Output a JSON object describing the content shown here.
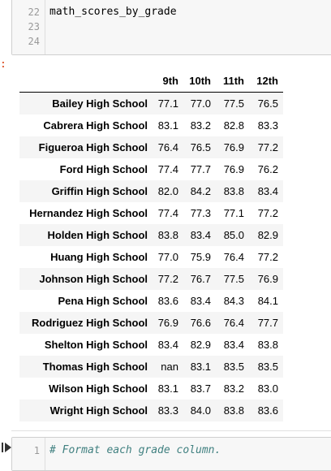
{
  "top_cell": {
    "lines": [
      {
        "number": "22",
        "code": "math_scores_by_grade"
      },
      {
        "number": "23",
        "code": ""
      },
      {
        "number": "24",
        "code": ""
      }
    ],
    "output_prompt": ":"
  },
  "table": {
    "columns": [
      "9th",
      "10th",
      "11th",
      "12th"
    ],
    "rows": [
      {
        "school": "Bailey High School",
        "values": [
          "77.1",
          "77.0",
          "77.5",
          "76.5"
        ]
      },
      {
        "school": "Cabrera High School",
        "values": [
          "83.1",
          "83.2",
          "82.8",
          "83.3"
        ]
      },
      {
        "school": "Figueroa High School",
        "values": [
          "76.4",
          "76.5",
          "76.9",
          "77.2"
        ]
      },
      {
        "school": "Ford High School",
        "values": [
          "77.4",
          "77.7",
          "76.9",
          "76.2"
        ]
      },
      {
        "school": "Griffin High School",
        "values": [
          "82.0",
          "84.2",
          "83.8",
          "83.4"
        ]
      },
      {
        "school": "Hernandez High School",
        "values": [
          "77.4",
          "77.3",
          "77.1",
          "77.2"
        ]
      },
      {
        "school": "Holden High School",
        "values": [
          "83.8",
          "83.4",
          "85.0",
          "82.9"
        ]
      },
      {
        "school": "Huang High School",
        "values": [
          "77.0",
          "75.9",
          "76.4",
          "77.2"
        ]
      },
      {
        "school": "Johnson High School",
        "values": [
          "77.2",
          "76.7",
          "77.5",
          "76.9"
        ]
      },
      {
        "school": "Pena High School",
        "values": [
          "83.6",
          "83.4",
          "84.3",
          "84.1"
        ]
      },
      {
        "school": "Rodriguez High School",
        "values": [
          "76.9",
          "76.6",
          "76.4",
          "77.7"
        ]
      },
      {
        "school": "Shelton High School",
        "values": [
          "83.4",
          "82.9",
          "83.4",
          "83.8"
        ]
      },
      {
        "school": "Thomas High School",
        "values": [
          "nan",
          "83.1",
          "83.5",
          "83.5"
        ]
      },
      {
        "school": "Wilson High School",
        "values": [
          "83.1",
          "83.7",
          "83.2",
          "83.0"
        ]
      },
      {
        "school": "Wright High School",
        "values": [
          "83.3",
          "84.0",
          "83.8",
          "83.6"
        ]
      }
    ]
  },
  "bottom_cell": {
    "line_number": "1",
    "code": "# Format each grade column.",
    "run_icon": "step-run-icon"
  },
  "colors": {
    "comment": "#408080",
    "out_prompt": "#d84315",
    "row_stripe": "#f5f5f5"
  }
}
